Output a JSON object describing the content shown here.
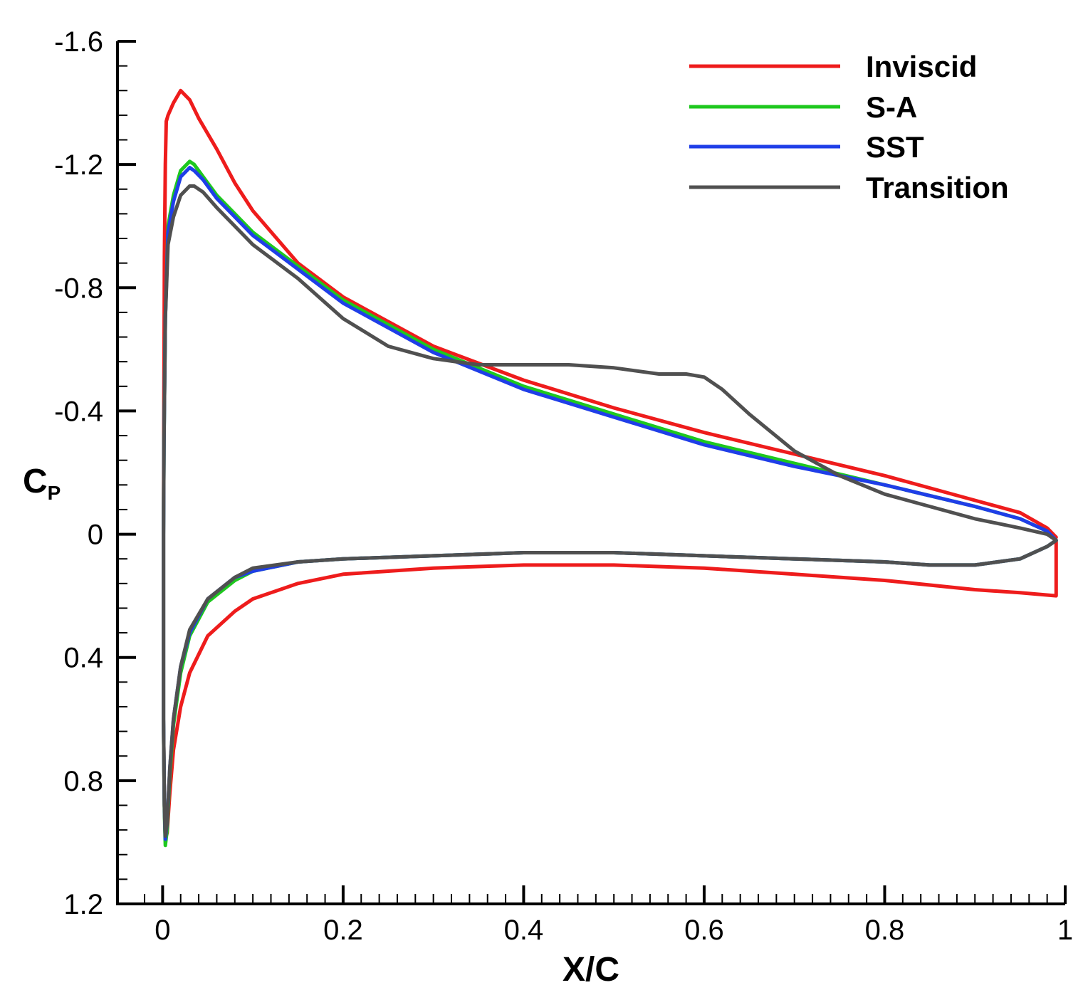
{
  "chart_data": {
    "type": "line",
    "title": "",
    "xlabel": "X/C",
    "ylabel_main": "C",
    "ylabel_sub": "P",
    "xlim": [
      -0.05,
      1.0
    ],
    "ylim": [
      -1.6,
      1.2
    ],
    "y_inverted": true,
    "grid": false,
    "legend_position": "top-right",
    "xticks": [
      0,
      0.2,
      0.4,
      0.6,
      0.8,
      1
    ],
    "xtick_labels": [
      "0",
      "0.2",
      "0.4",
      "0.6",
      "0.8",
      "1"
    ],
    "yticks": [
      -1.6,
      -1.2,
      -0.8,
      -0.4,
      0,
      0.4,
      0.8,
      1.2
    ],
    "ytick_labels": [
      "-1.6",
      "-1.2",
      "-0.8",
      "-0.4",
      "0",
      "0.4",
      "0.8",
      "1.2"
    ],
    "series": [
      {
        "name": "Inviscid",
        "color": "#ee1c1c",
        "x": [
          0.99,
          0.98,
          0.95,
          0.9,
          0.8,
          0.7,
          0.6,
          0.5,
          0.4,
          0.3,
          0.2,
          0.15,
          0.1,
          0.08,
          0.06,
          0.04,
          0.03,
          0.02,
          0.012,
          0.006,
          0.004,
          0.003,
          0.002,
          0.0015,
          0.001,
          0.001,
          0.002,
          0.003,
          0.005,
          0.008,
          0.012,
          0.02,
          0.03,
          0.05,
          0.08,
          0.1,
          0.15,
          0.2,
          0.3,
          0.4,
          0.5,
          0.6,
          0.7,
          0.8,
          0.9,
          0.95,
          0.99,
          0.99
        ],
        "y": [
          0.01,
          -0.02,
          -0.07,
          -0.11,
          -0.19,
          -0.26,
          -0.33,
          -0.41,
          -0.5,
          -0.61,
          -0.77,
          -0.88,
          -1.05,
          -1.14,
          -1.25,
          -1.35,
          -1.41,
          -1.44,
          -1.4,
          -1.36,
          -1.34,
          -1.2,
          -0.9,
          -0.5,
          0.0,
          0.6,
          0.88,
          0.99,
          0.97,
          0.84,
          0.7,
          0.56,
          0.45,
          0.33,
          0.25,
          0.21,
          0.16,
          0.13,
          0.11,
          0.1,
          0.1,
          0.11,
          0.13,
          0.15,
          0.18,
          0.19,
          0.2,
          0.02
        ]
      },
      {
        "name": "S-A",
        "color": "#1ec81e",
        "x": [
          0.99,
          0.98,
          0.95,
          0.9,
          0.8,
          0.7,
          0.6,
          0.5,
          0.4,
          0.3,
          0.2,
          0.15,
          0.1,
          0.08,
          0.06,
          0.045,
          0.035,
          0.03,
          0.02,
          0.012,
          0.006,
          0.003,
          0.0015,
          0.001,
          0.001,
          0.002,
          0.003,
          0.005,
          0.008,
          0.012,
          0.02,
          0.03,
          0.05,
          0.08,
          0.1,
          0.15,
          0.2,
          0.3,
          0.4,
          0.5,
          0.6,
          0.7,
          0.8,
          0.85,
          0.9,
          0.95,
          0.98,
          0.99
        ],
        "y": [
          0.02,
          -0.01,
          -0.05,
          -0.09,
          -0.16,
          -0.23,
          -0.3,
          -0.39,
          -0.48,
          -0.6,
          -0.76,
          -0.87,
          -0.98,
          -1.04,
          -1.1,
          -1.16,
          -1.2,
          -1.21,
          -1.18,
          -1.1,
          -1.0,
          -0.7,
          -0.3,
          0.0,
          0.6,
          0.9,
          1.01,
          0.96,
          0.78,
          0.62,
          0.45,
          0.33,
          0.22,
          0.15,
          0.12,
          0.09,
          0.08,
          0.07,
          0.06,
          0.06,
          0.07,
          0.08,
          0.09,
          0.1,
          0.1,
          0.08,
          0.04,
          0.02
        ]
      },
      {
        "name": "SST",
        "color": "#1f3ee8",
        "x": [
          0.99,
          0.98,
          0.95,
          0.9,
          0.8,
          0.7,
          0.6,
          0.5,
          0.4,
          0.3,
          0.2,
          0.15,
          0.1,
          0.08,
          0.06,
          0.045,
          0.035,
          0.03,
          0.02,
          0.012,
          0.006,
          0.003,
          0.0015,
          0.001,
          0.001,
          0.002,
          0.003,
          0.005,
          0.008,
          0.012,
          0.02,
          0.03,
          0.05,
          0.08,
          0.1,
          0.15,
          0.2,
          0.3,
          0.4,
          0.5,
          0.6,
          0.7,
          0.8,
          0.85,
          0.9,
          0.95,
          0.98,
          0.99
        ],
        "y": [
          0.02,
          -0.01,
          -0.05,
          -0.09,
          -0.16,
          -0.22,
          -0.29,
          -0.38,
          -0.47,
          -0.59,
          -0.75,
          -0.86,
          -0.97,
          -1.03,
          -1.09,
          -1.15,
          -1.18,
          -1.19,
          -1.16,
          -1.08,
          -0.98,
          -0.7,
          -0.3,
          0.0,
          0.6,
          0.88,
          0.99,
          0.94,
          0.76,
          0.6,
          0.43,
          0.32,
          0.21,
          0.14,
          0.12,
          0.09,
          0.08,
          0.07,
          0.06,
          0.06,
          0.07,
          0.08,
          0.09,
          0.1,
          0.1,
          0.08,
          0.04,
          0.02
        ]
      },
      {
        "name": "Transition",
        "color": "#505050",
        "x": [
          0.99,
          0.98,
          0.95,
          0.9,
          0.8,
          0.75,
          0.7,
          0.65,
          0.62,
          0.6,
          0.58,
          0.55,
          0.5,
          0.45,
          0.4,
          0.35,
          0.3,
          0.25,
          0.2,
          0.15,
          0.1,
          0.08,
          0.06,
          0.045,
          0.035,
          0.03,
          0.02,
          0.012,
          0.006,
          0.003,
          0.0015,
          0.001,
          0.001,
          0.002,
          0.003,
          0.005,
          0.008,
          0.012,
          0.02,
          0.03,
          0.05,
          0.08,
          0.1,
          0.15,
          0.2,
          0.3,
          0.4,
          0.5,
          0.6,
          0.7,
          0.8,
          0.85,
          0.9,
          0.95,
          0.98,
          0.99
        ],
        "y": [
          0.02,
          0.0,
          -0.02,
          -0.05,
          -0.13,
          -0.19,
          -0.27,
          -0.39,
          -0.47,
          -0.51,
          -0.52,
          -0.52,
          -0.54,
          -0.55,
          -0.55,
          -0.55,
          -0.57,
          -0.61,
          -0.7,
          -0.83,
          -0.94,
          -1.0,
          -1.06,
          -1.11,
          -1.13,
          -1.13,
          -1.1,
          -1.03,
          -0.94,
          -0.7,
          -0.3,
          0.0,
          0.6,
          0.88,
          0.98,
          0.94,
          0.76,
          0.6,
          0.43,
          0.31,
          0.21,
          0.14,
          0.11,
          0.09,
          0.08,
          0.07,
          0.06,
          0.06,
          0.07,
          0.08,
          0.09,
          0.1,
          0.1,
          0.08,
          0.04,
          0.02
        ]
      }
    ]
  }
}
